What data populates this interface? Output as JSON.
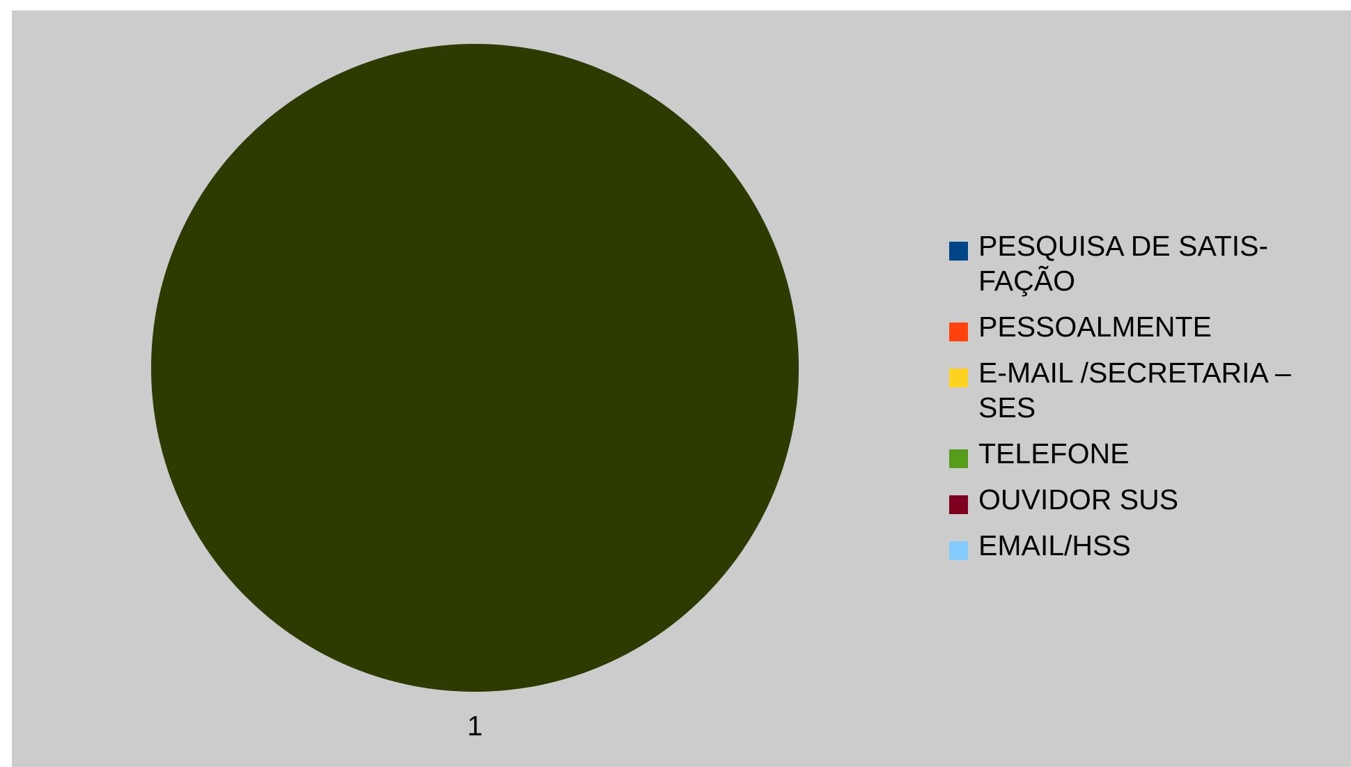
{
  "chart_data": {
    "type": "pie",
    "title": "",
    "categories": [
      "1"
    ],
    "series": [
      {
        "name": "PESQUISA DE SATIS-\nFAÇÃO",
        "color": "#004586",
        "values": [
          0
        ]
      },
      {
        "name": "PESSOALMENTE",
        "color": "#ff420e",
        "values": [
          0
        ]
      },
      {
        "name": "E-MAIL /SECRETARIA –\nSES",
        "color": "#ffd320",
        "values": [
          0
        ]
      },
      {
        "name": "TELEFONE",
        "color": "#579d1c",
        "values": [
          0
        ]
      },
      {
        "name": "OUVIDOR SUS",
        "color": "#7e0021",
        "values": [
          0
        ]
      },
      {
        "name": "EMAIL/HSS",
        "color": "#83caff",
        "values": [
          0
        ]
      }
    ],
    "slices": [
      {
        "label": "1",
        "value": 1,
        "color": "#2d3a00"
      }
    ],
    "legend_position": "right",
    "background": "#cccccc"
  }
}
